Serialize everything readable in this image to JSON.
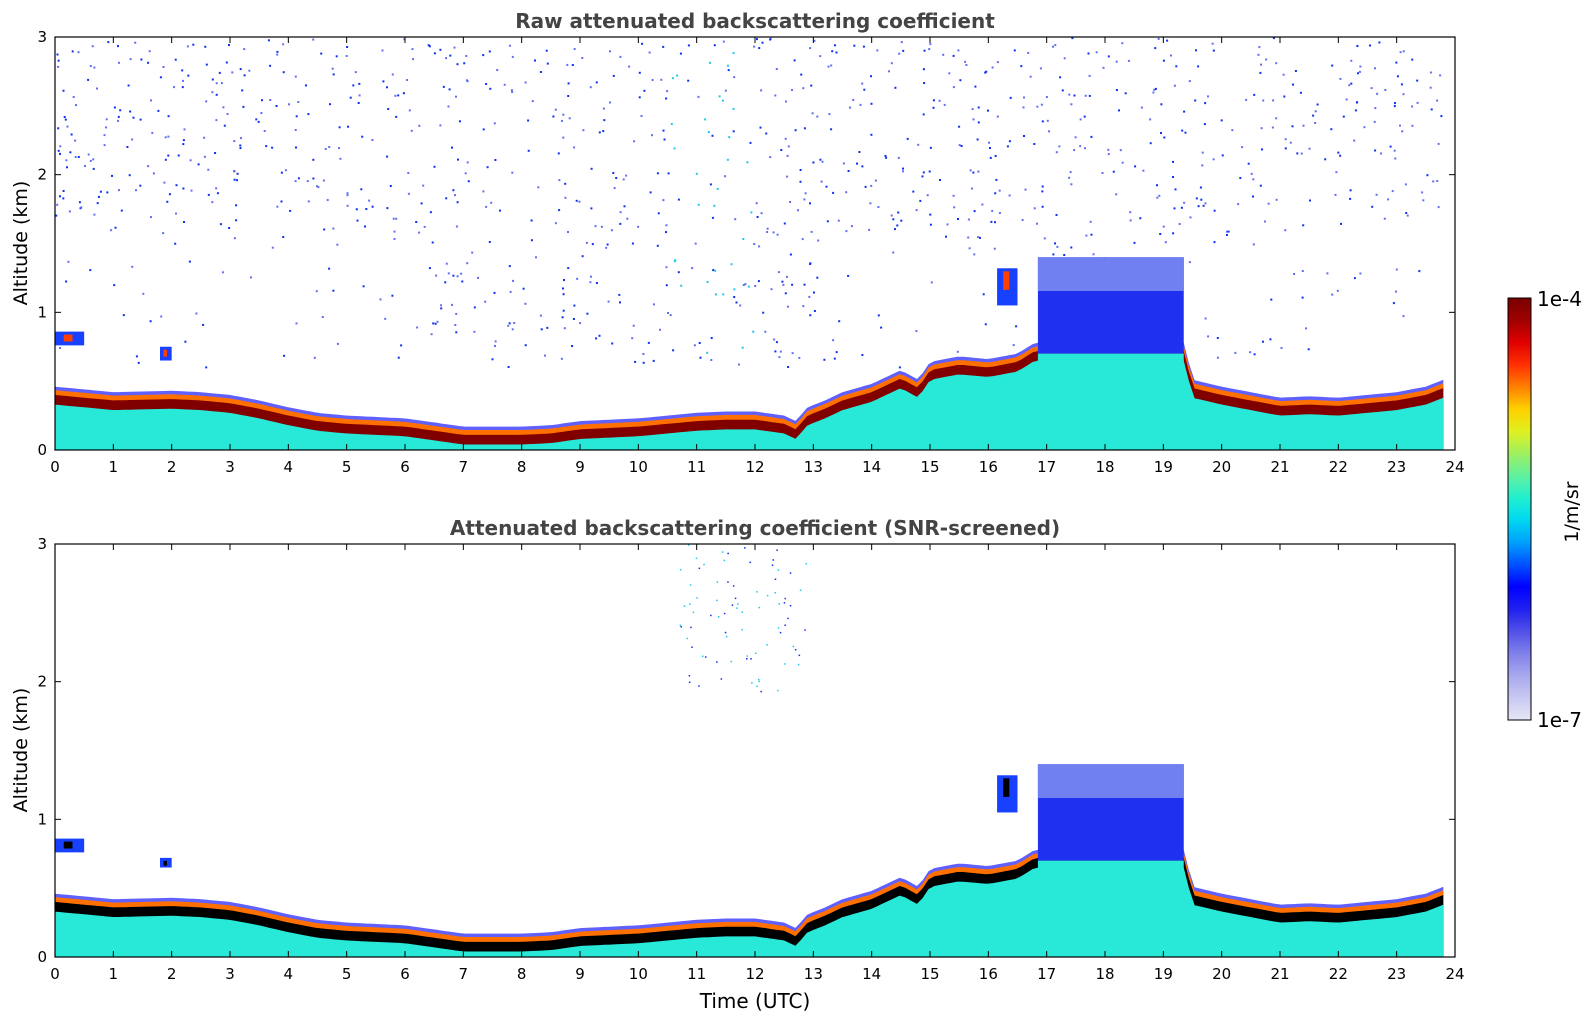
{
  "chart_data": [
    {
      "type": "heatmap",
      "title": "Raw attenuated backscattering coefficient",
      "xlabel": "",
      "ylabel": "Altitude (km)",
      "xlim": [
        0,
        24
      ],
      "ylim": [
        0,
        3
      ],
      "xticks": [
        "0",
        "1",
        "2",
        "3",
        "4",
        "5",
        "6",
        "7",
        "8",
        "9",
        "10",
        "11",
        "12",
        "13",
        "14",
        "15",
        "16",
        "17",
        "18",
        "19",
        "20",
        "21",
        "22",
        "23",
        "24"
      ],
      "yticks": [
        "0",
        "1",
        "2",
        "3"
      ],
      "data_end_hour": 23.8,
      "boundary_layer_top_km": [
        [
          0,
          0.4
        ],
        [
          0.5,
          0.38
        ],
        [
          1,
          0.36
        ],
        [
          2,
          0.37
        ],
        [
          2.5,
          0.36
        ],
        [
          3,
          0.34
        ],
        [
          3.5,
          0.3
        ],
        [
          4,
          0.25
        ],
        [
          4.5,
          0.21
        ],
        [
          5,
          0.19
        ],
        [
          5.5,
          0.18
        ],
        [
          6,
          0.17
        ],
        [
          6.5,
          0.14
        ],
        [
          7,
          0.11
        ],
        [
          7.5,
          0.11
        ],
        [
          8,
          0.11
        ],
        [
          8.5,
          0.12
        ],
        [
          9,
          0.15
        ],
        [
          9.5,
          0.16
        ],
        [
          10,
          0.17
        ],
        [
          10.5,
          0.19
        ],
        [
          11,
          0.21
        ],
        [
          11.5,
          0.22
        ],
        [
          12,
          0.22
        ],
        [
          12.5,
          0.19
        ],
        [
          12.7,
          0.15
        ],
        [
          12.9,
          0.25
        ],
        [
          13.2,
          0.3
        ],
        [
          13.5,
          0.36
        ],
        [
          14,
          0.42
        ],
        [
          14.5,
          0.52
        ],
        [
          14.8,
          0.45
        ],
        [
          15,
          0.58
        ],
        [
          15.5,
          0.62
        ],
        [
          16,
          0.6
        ],
        [
          16.5,
          0.64
        ],
        [
          16.8,
          0.72
        ],
        [
          17.5,
          0.72
        ],
        [
          18,
          0.7
        ],
        [
          18.5,
          0.72
        ],
        [
          19,
          0.74
        ],
        [
          19.35,
          0.74
        ],
        [
          19.5,
          0.45
        ],
        [
          20,
          0.4
        ],
        [
          20.5,
          0.36
        ],
        [
          21,
          0.32
        ],
        [
          21.5,
          0.33
        ],
        [
          22,
          0.32
        ],
        [
          22.5,
          0.34
        ],
        [
          23,
          0.36
        ],
        [
          23.5,
          0.4
        ],
        [
          23.8,
          0.45
        ]
      ],
      "features": [
        {
          "kind": "cloud",
          "start_hour": 0.0,
          "end_hour": 0.5,
          "base_km": 0.76,
          "top_km": 0.86
        },
        {
          "kind": "cloud",
          "start_hour": 1.8,
          "end_hour": 2.0,
          "base_km": 0.65,
          "top_km": 0.75
        },
        {
          "kind": "cloud",
          "start_hour": 16.15,
          "end_hour": 16.5,
          "base_km": 1.05,
          "top_km": 1.32
        },
        {
          "kind": "aerosol_layer",
          "start_hour": 16.85,
          "end_hour": 19.35,
          "base_km": 0.7,
          "top_km": 1.4
        }
      ]
    },
    {
      "type": "heatmap",
      "title": "Attenuated backscattering coefficient (SNR-screened)",
      "xlabel": "Time (UTC)",
      "ylabel": "Altitude (km)",
      "xlim": [
        0,
        24
      ],
      "ylim": [
        0,
        3
      ],
      "xticks": [
        "0",
        "1",
        "2",
        "3",
        "4",
        "5",
        "6",
        "7",
        "8",
        "9",
        "10",
        "11",
        "12",
        "13",
        "14",
        "15",
        "16",
        "17",
        "18",
        "19",
        "20",
        "21",
        "22",
        "23",
        "24"
      ],
      "yticks": [
        "0",
        "1",
        "2",
        "3"
      ],
      "data_end_hour": 23.8,
      "boundary_layer_top_km": "same as panel 1",
      "features": [
        {
          "kind": "cloud",
          "start_hour": 0.0,
          "end_hour": 0.5,
          "base_km": 0.76,
          "top_km": 0.86
        },
        {
          "kind": "cloud",
          "start_hour": 1.8,
          "end_hour": 2.0,
          "base_km": 0.65,
          "top_km": 0.72
        },
        {
          "kind": "cloud",
          "start_hour": 16.15,
          "end_hour": 16.5,
          "base_km": 1.05,
          "top_km": 1.32
        },
        {
          "kind": "aerosol_layer",
          "start_hour": 16.85,
          "end_hour": 19.35,
          "base_km": 0.7,
          "top_km": 1.4
        }
      ]
    }
  ],
  "colorbar": {
    "label": "1/m/sr",
    "max_label": "1e-4",
    "min_label": "1e-7",
    "colors": [
      "#e6e6f7",
      "#c8c8f2",
      "#a8a8ee",
      "#8080ea",
      "#5050e8",
      "#2020f0",
      "#0000ff",
      "#0050ff",
      "#00a0ff",
      "#00d8f0",
      "#20f0d0",
      "#60f0a0",
      "#a0f060",
      "#e0f020",
      "#ffd000",
      "#ff8000",
      "#ff3000",
      "#e00000",
      "#a00000",
      "#780000"
    ]
  }
}
